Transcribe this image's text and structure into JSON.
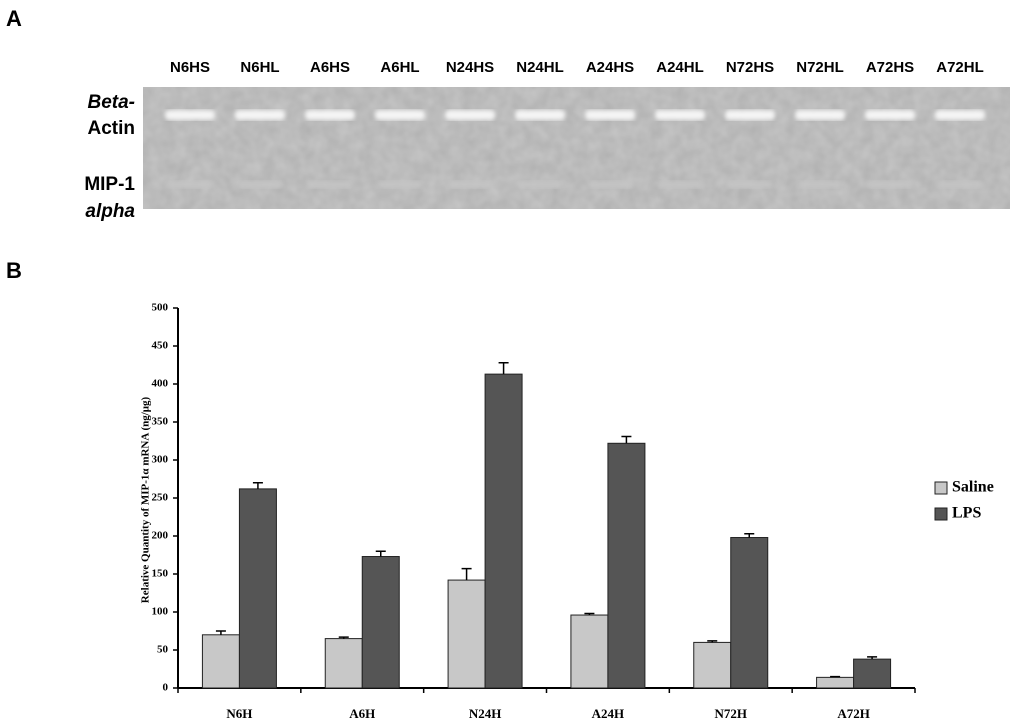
{
  "panel_a": {
    "label": "A",
    "lanes": [
      "N6HS",
      "N6HL",
      "A6HS",
      "A6HL",
      "N24HS",
      "N24HL",
      "A24HS",
      "A24HL",
      "N72HS",
      "N72HL",
      "A72HS",
      "A72HL"
    ],
    "rows": [
      {
        "lines": [
          "Beta-",
          "Actin"
        ]
      },
      {
        "lines": [
          "MIP-1",
          "alpha"
        ]
      }
    ]
  },
  "chart_data": {
    "type": "bar",
    "panel_label": "B",
    "y_label": "Relative Quantity of MIP-1α mRNA (ng/μg)",
    "categories": [
      "N6H",
      "A6H",
      "N24H",
      "A24H",
      "N72H",
      "A72H"
    ],
    "series": [
      {
        "name": "Saline",
        "color": "#c8c8c8",
        "values": [
          70,
          65,
          142,
          96,
          60,
          14
        ],
        "errors": [
          5,
          2,
          15,
          2,
          2,
          1
        ]
      },
      {
        "name": "LPS",
        "color": "#555555",
        "values": [
          262,
          173,
          413,
          322,
          198,
          38
        ],
        "errors": [
          8,
          7,
          15,
          9,
          5,
          3
        ]
      }
    ],
    "ylim": [
      0,
      500
    ],
    "yticks": [
      0,
      50,
      100,
      150,
      200,
      250,
      300,
      350,
      400,
      450,
      500
    ],
    "legend": "right"
  }
}
